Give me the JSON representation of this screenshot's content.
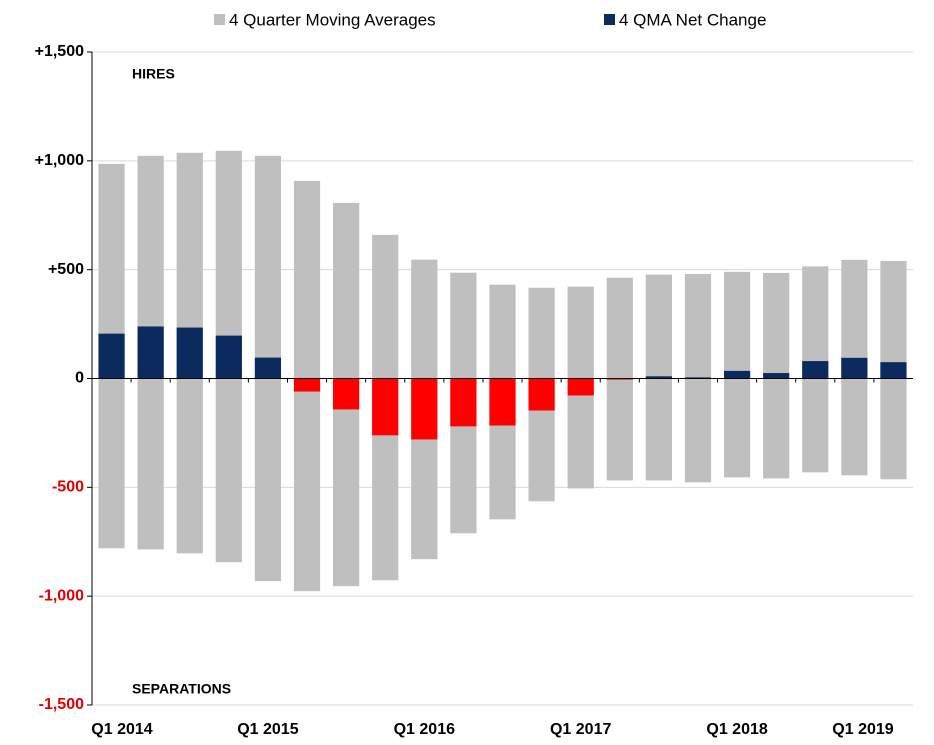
{
  "chart_data": {
    "type": "diverging-bar",
    "annotations": [
      "HIRES",
      "SEPARATIONS"
    ],
    "categories": [
      "Q1 2014",
      null,
      null,
      null,
      "Q1 2015",
      null,
      null,
      null,
      "Q1 2016",
      null,
      null,
      null,
      "Q1 2017",
      null,
      null,
      null,
      "Q1 2018",
      null,
      null,
      null,
      "Q1 2019"
    ],
    "series": [
      {
        "name": "4 Quarter Moving Averages",
        "color": "#bfbfbf",
        "values": [
          986,
          1023,
          1037,
          1046,
          1023,
          908,
          807,
          660,
          546,
          486,
          431,
          417,
          422,
          463,
          477,
          480,
          490,
          485,
          515,
          545,
          540
        ],
        "negative_values": [
          -780,
          -785,
          -803,
          -844,
          -931,
          -977,
          -954,
          -927,
          -830,
          -711,
          -647,
          -564,
          -505,
          -468,
          -468,
          -477,
          -454,
          -459,
          -431,
          -445,
          -463
        ]
      },
      {
        "name": "4 QMA Net Change",
        "color": "#0b2a5e",
        "negative_color": "#ff0000",
        "values": [
          206,
          239,
          234,
          197,
          96,
          -60,
          -142,
          -261,
          -280,
          -220,
          -216,
          -147,
          -78,
          -5,
          10,
          5,
          35,
          25,
          80,
          95,
          75
        ]
      }
    ],
    "ylim": [
      -1500,
      1500
    ],
    "yticks": [
      {
        "value": -1500,
        "label": "-1,500"
      },
      {
        "value": -1000,
        "label": "-1,000"
      },
      -500,
      0,
      {
        "value": 500,
        "label": "+500"
      },
      {
        "value": 1000,
        "label": "+1,000"
      },
      {
        "value": 1500,
        "label": "+1,500"
      }
    ],
    "negative_tick_color": "#e00000",
    "grid": true
  }
}
